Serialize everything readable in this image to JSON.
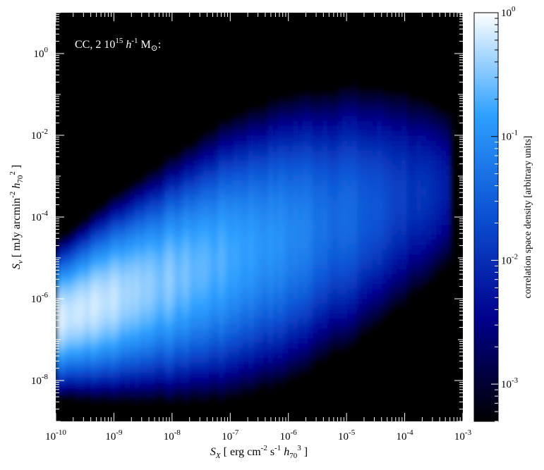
{
  "chart_data": {
    "type": "heatmap",
    "title": "",
    "annotation": {
      "prefix": "CC, 2 10",
      "exp": "15",
      "h": " h",
      "hexp": "-1",
      "tail": " M",
      "sym": "⊙",
      "end": ":"
    },
    "xlabel": {
      "sym": "S",
      "sub": "X",
      "open": " [ erg cm",
      "e1": "-2",
      "mid": " s",
      "e2": "-1",
      "h": " h",
      "hsub": "70",
      "hexp": "3",
      "close": " ]"
    },
    "ylabel": {
      "sym": "S",
      "sub": "ν",
      "open": " [ mJy arcmin",
      "e1": "-2",
      "h": " h",
      "hsub": "70",
      "hexp": "2",
      "close": " ]"
    },
    "x_log": true,
    "y_log": true,
    "xlim": [
      1e-10,
      0.001
    ],
    "ylim": [
      1e-09,
      10.0
    ],
    "x_ticks": [
      {
        "value": 1e-10,
        "base": "10",
        "exp": "-10"
      },
      {
        "value": 1e-09,
        "base": "10",
        "exp": "-9"
      },
      {
        "value": 1e-08,
        "base": "10",
        "exp": "-8"
      },
      {
        "value": 1e-07,
        "base": "10",
        "exp": "-7"
      },
      {
        "value": 1e-06,
        "base": "10",
        "exp": "-6"
      },
      {
        "value": 1e-05,
        "base": "10",
        "exp": "-5"
      },
      {
        "value": 0.0001,
        "base": "10",
        "exp": "-4"
      },
      {
        "value": 0.001,
        "base": "10",
        "exp": "-3"
      }
    ],
    "y_ticks": [
      {
        "value": 1e-08,
        "base": "10",
        "exp": "-8"
      },
      {
        "value": 1e-06,
        "base": "10",
        "exp": "-6"
      },
      {
        "value": 0.0001,
        "base": "10",
        "exp": "-4"
      },
      {
        "value": 0.01,
        "base": "10",
        "exp": "-2"
      },
      {
        "value": 1,
        "base": "10",
        "exp": "0"
      }
    ],
    "colorbar": {
      "label": "correlation space density [arbitrary units]",
      "scale": "log",
      "range": [
        0.0005,
        1
      ],
      "ticks": [
        {
          "value": 0.001,
          "base": "10",
          "exp": "-3"
        },
        {
          "value": 0.01,
          "base": "10",
          "exp": "-2"
        },
        {
          "value": 0.1,
          "base": "10",
          "exp": "-1"
        },
        {
          "value": 1,
          "base": "10",
          "exp": "0"
        }
      ],
      "colors": [
        "#000000",
        "#00008c",
        "#0a50d2",
        "#2ea0ff",
        "#ffffff"
      ]
    },
    "background_color": "#000000",
    "density_ridge": [
      {
        "x": 1e-10,
        "y_center": 3e-07,
        "width_dex": 1.2,
        "density": 0.75
      },
      {
        "x": 1e-09,
        "y_center": 1e-06,
        "width_dex": 1.6,
        "density": 0.55
      },
      {
        "x": 1e-08,
        "y_center": 3e-06,
        "width_dex": 2.0,
        "density": 0.3
      },
      {
        "x": 1e-07,
        "y_center": 1e-05,
        "width_dex": 2.4,
        "density": 0.18
      },
      {
        "x": 1e-06,
        "y_center": 3e-05,
        "width_dex": 2.6,
        "density": 0.09
      },
      {
        "x": 1e-05,
        "y_center": 0.0001,
        "width_dex": 2.6,
        "density": 0.04
      },
      {
        "x": 0.0001,
        "y_center": 0.0003,
        "width_dex": 2.4,
        "density": 0.015
      },
      {
        "x": 0.0005,
        "y_center": 0.0005,
        "width_dex": 2.0,
        "density": 0.006
      }
    ]
  }
}
